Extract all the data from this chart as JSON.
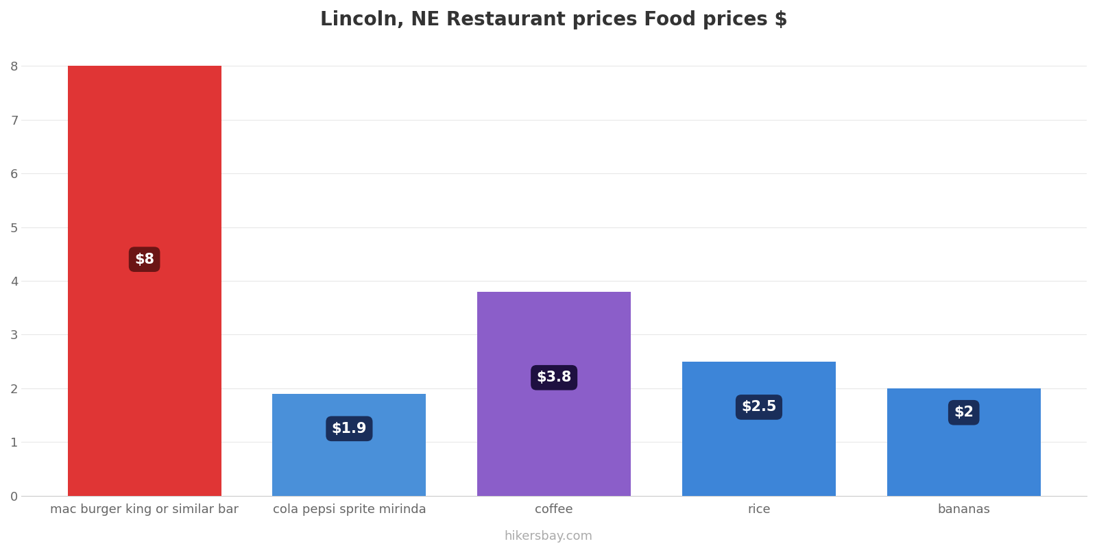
{
  "title": "Lincoln, NE Restaurant prices Food prices $",
  "categories": [
    "mac burger king or similar bar",
    "cola pepsi sprite mirinda",
    "coffee",
    "rice",
    "bananas"
  ],
  "values": [
    8.0,
    1.9,
    3.8,
    2.5,
    2.0
  ],
  "bar_colors": [
    "#e03535",
    "#4a90d9",
    "#8b5ec9",
    "#3d85d8",
    "#3d85d8"
  ],
  "label_texts": [
    "$8",
    "$1.9",
    "$3.8",
    "$2.5",
    "$2"
  ],
  "label_box_colors": [
    "#6b1515",
    "#1a2e5a",
    "#1e1040",
    "#1a2e5a",
    "#1a2e5a"
  ],
  "label_positions_y": [
    4.4,
    1.25,
    2.2,
    1.65,
    1.55
  ],
  "ylim": [
    0,
    8.4
  ],
  "yticks": [
    0,
    1,
    2,
    3,
    4,
    5,
    6,
    7,
    8
  ],
  "bar_width": 0.75,
  "background_color": "#ffffff",
  "title_fontsize": 20,
  "tick_fontsize": 13,
  "watermark": "hikersbay.com",
  "watermark_color": "#aaaaaa"
}
